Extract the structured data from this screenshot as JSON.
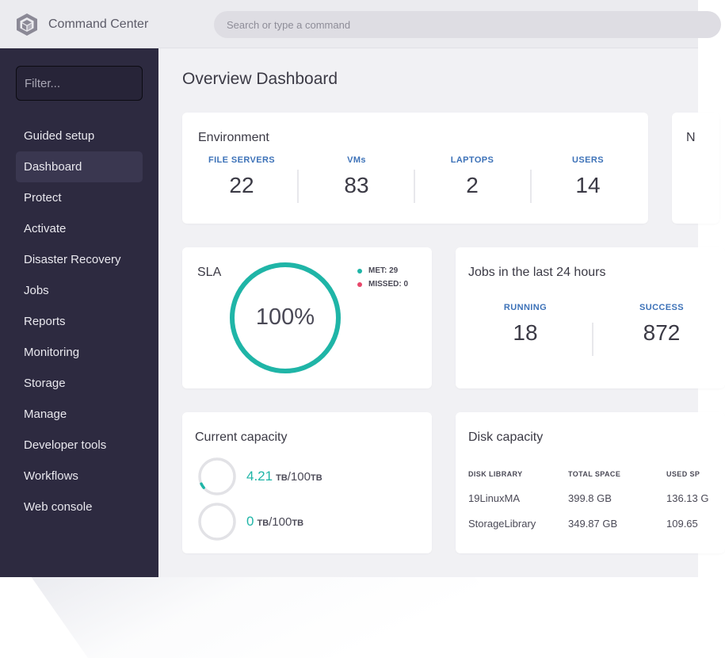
{
  "header": {
    "app_title": "Command Center",
    "search_placeholder": "Search or type a command"
  },
  "sidebar": {
    "filter_placeholder": "Filter...",
    "items": [
      {
        "label": "Guided setup"
      },
      {
        "label": "Dashboard",
        "active": true
      },
      {
        "label": "Protect"
      },
      {
        "label": "Activate"
      },
      {
        "label": "Disaster Recovery"
      },
      {
        "label": "Jobs"
      },
      {
        "label": "Reports"
      },
      {
        "label": "Monitoring"
      },
      {
        "label": "Storage"
      },
      {
        "label": "Manage"
      },
      {
        "label": "Developer tools"
      },
      {
        "label": "Workflows"
      },
      {
        "label": "Web console"
      }
    ]
  },
  "main": {
    "title": "Overview Dashboard",
    "environment": {
      "title": "Environment",
      "stats": [
        {
          "label": "FILE SERVERS",
          "value": "22"
        },
        {
          "label": "VMs",
          "value": "83"
        },
        {
          "label": "LAPTOPS",
          "value": "2"
        },
        {
          "label": "USERS",
          "value": "14"
        }
      ]
    },
    "next_card": {
      "title_partial": "N"
    },
    "sla": {
      "title": "SLA",
      "percent_label": "100%",
      "percent": 100,
      "met_label": "MET: 29",
      "missed_label": "MISSED: 0",
      "met_color": "#1fb5a7",
      "missed_color": "#e8476a"
    },
    "jobs": {
      "title": "Jobs in the last 24 hours",
      "stats": [
        {
          "label": "RUNNING",
          "value": "18"
        },
        {
          "label": "SUCCESS",
          "value": "872"
        }
      ]
    },
    "capacity": {
      "title": "Current capacity",
      "rows": [
        {
          "value": "4.21",
          "used_unit": "TB",
          "separator": "/100",
          "total_unit": "TB",
          "fraction": 0.0421
        },
        {
          "value": "0",
          "used_unit": "TB",
          "separator": "/100",
          "total_unit": "TB",
          "fraction": 0
        }
      ]
    },
    "disk": {
      "title": "Disk capacity",
      "columns": [
        "DISK LIBRARY",
        "TOTAL SPACE",
        "USED SP"
      ],
      "rows": [
        [
          "19LinuxMA",
          "399.8 GB",
          "136.13 G"
        ],
        [
          "StorageLibrary",
          "349.87 GB",
          "109.65"
        ]
      ]
    },
    "accent_color": "#1fb5a7"
  }
}
